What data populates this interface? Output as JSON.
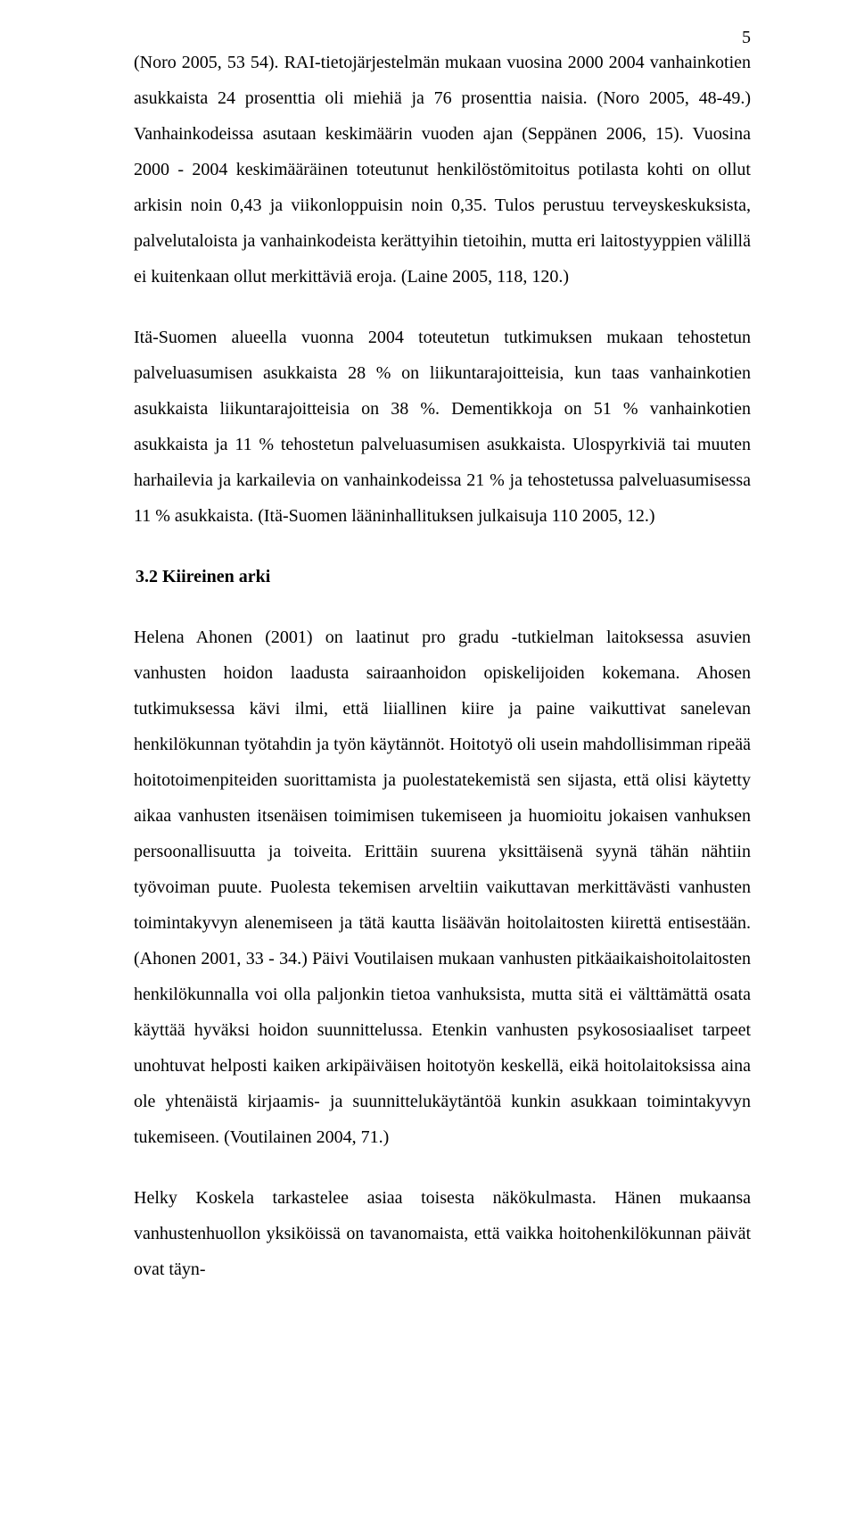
{
  "document": {
    "page_number": "5",
    "font_family": "Times New Roman",
    "font_size_pt": 12,
    "line_height": 2.0,
    "text_color": "#000000",
    "background_color": "#ffffff",
    "paragraphs": {
      "p1": "(Noro 2005, 53 54). RAI-tietojärjestelmän mukaan vuosina 2000 2004 vanhainkotien asukkaista 24 prosenttia oli miehiä ja 76 prosenttia naisia. (Noro 2005, 48-49.) Vanhainkodeissa asutaan keskimäärin vuoden ajan (Seppänen 2006, 15). Vuosina 2000 - 2004 keskimääräinen toteutunut henkilöstömitoitus potilasta kohti on ollut arkisin noin 0,43 ja viikonloppuisin noin 0,35. Tulos perustuu terveyskeskuksista, palvelutaloista ja vanhainkodeista kerättyihin tietoihin, mutta eri laitostyyppien välillä ei kuitenkaan ollut merkittäviä eroja. (Laine 2005, 118, 120.)",
      "p2": "Itä-Suomen alueella vuonna 2004 toteutetun tutkimuksen mukaan tehostetun palveluasumisen asukkaista 28 % on liikuntarajoitteisia, kun taas vanhainkotien asukkaista liikuntarajoitteisia on 38 %. Dementikkoja on 51 % vanhainkotien asukkaista ja 11 % tehostetun palveluasumisen asukkaista. Ulospyrkiviä tai muuten harhailevia ja karkailevia on vanhainkodeissa 21 % ja tehostetussa palveluasumisessa 11 % asukkaista. (Itä-Suomen lääninhallituksen julkaisuja 110 2005, 12.)",
      "heading": "3.2 Kiireinen arki",
      "p3": "Helena Ahonen (2001) on laatinut pro gradu -tutkielman laitoksessa asuvien vanhusten hoidon laadusta sairaanhoidon opiskelijoiden kokemana. Ahosen tutkimuksessa kävi ilmi, että liiallinen kiire ja paine vaikuttivat sanelevan henkilökunnan työtahdin ja työn käytännöt. Hoitotyö oli usein mahdollisimman ripeää hoitotoimenpiteiden suorittamista ja puolestatekemistä sen sijasta, että olisi käytetty aikaa vanhusten itsenäisen toimimisen tukemiseen ja huomioitu jokaisen vanhuksen persoonallisuutta ja toiveita. Erittäin suurena yksittäisenä syynä tähän nähtiin työvoiman puute. Puolesta tekemisen arveltiin vaikuttavan merkittävästi vanhusten toimintakyvyn alenemiseen ja tätä kautta lisäävän hoitolaitosten kiirettä entisestään. (Ahonen 2001, 33 - 34.) Päivi Voutilaisen mukaan vanhusten pitkäaikaishoitolaitosten henkilökunnalla voi olla paljonkin tietoa vanhuksista, mutta sitä ei välttämättä osata käyttää hyväksi hoidon suunnittelussa. Etenkin vanhusten psykososiaaliset tarpeet unohtuvat helposti kaiken arkipäiväisen hoitotyön keskellä, eikä hoitolaitoksissa aina ole yhtenäistä kirjaamis- ja suunnittelukäytäntöä kunkin asukkaan toimintakyvyn tukemiseen. (Voutilainen 2004, 71.)",
      "p4": "Helky Koskela tarkastelee asiaa toisesta näkökulmasta. Hänen mukaansa vanhustenhuollon yksiköissä on tavanomaista, että vaikka hoitohenkilökunnan päivät ovat täyn-"
    }
  }
}
